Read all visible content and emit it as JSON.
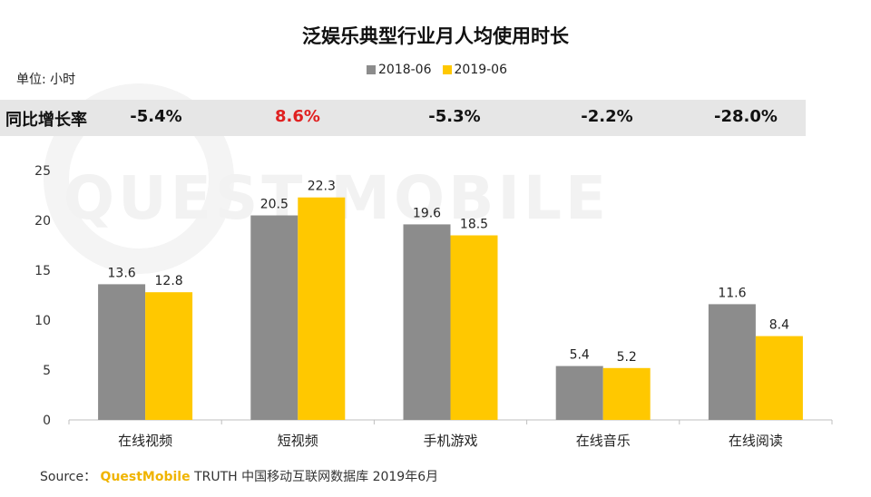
{
  "title": "泛娱乐典型行业月人均使用时长",
  "unit_label": "单位: 小时",
  "growth_row": {
    "label": "同比增长率",
    "values": [
      "-5.4%",
      "8.6%",
      "-5.3%",
      "-2.2%",
      "-28.0%"
    ],
    "highlight_index": 1
  },
  "watermark": "QUEST MOBILE",
  "source": {
    "prefix": "Source：",
    "brand": "QuestMobile",
    "suffix": "TRUTH 中国移动互联网数据库 2019年6月"
  },
  "colors": {
    "series_2018": "#8c8c8c",
    "series_2019": "#ffc800",
    "highlight": "#e02020"
  },
  "chart_data": {
    "type": "bar",
    "title": "泛娱乐典型行业月人均使用时长",
    "categories": [
      "在线视频",
      "短视频",
      "手机游戏",
      "在线音乐",
      "在线阅读"
    ],
    "series": [
      {
        "name": "2018-06",
        "values": [
          13.6,
          20.5,
          19.6,
          5.4,
          11.6
        ],
        "color": "#8c8c8c"
      },
      {
        "name": "2019-06",
        "values": [
          12.8,
          22.3,
          18.5,
          5.2,
          8.4
        ],
        "color": "#ffc800"
      }
    ],
    "ylim": [
      0,
      25
    ],
    "yticks": [
      0,
      5,
      10,
      15,
      20,
      25
    ],
    "xlabel": "",
    "ylabel": "单位: 小时",
    "grid": false,
    "legend": "top-center",
    "data_labels": true
  }
}
